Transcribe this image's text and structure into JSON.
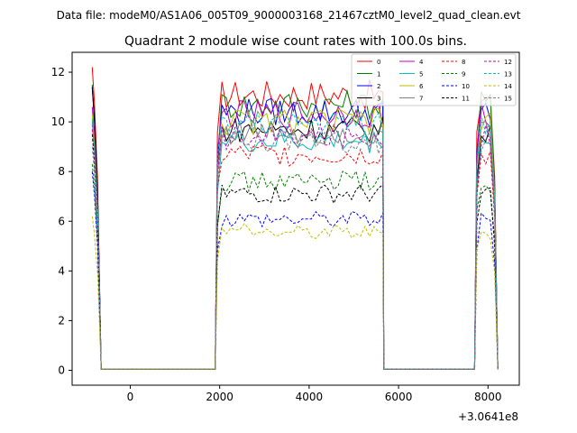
{
  "suptitle": "Data file: modeM0/AS1A06_005T09_9000003168_21467cztM0_level2_quad_clean.evt",
  "chart_data": {
    "type": "line",
    "title": "Quadrant 2 module wise count rates with 100.0s bins.",
    "xlabel": "",
    "ylabel": "",
    "x_offset_label": "+3.0641e8",
    "xlim": [
      -1300,
      8700
    ],
    "ylim": [
      -0.6,
      12.8
    ],
    "xticks": [
      0,
      2000,
      4000,
      6000,
      8000
    ],
    "yticks": [
      0,
      2,
      4,
      6,
      8,
      10,
      12
    ],
    "grid": false,
    "legend_position": "top-right",
    "x_segments": [
      {
        "start": -850,
        "end": -650,
        "state": "on"
      },
      {
        "start": -650,
        "end": 1900,
        "state": "off"
      },
      {
        "start": 1950,
        "end": 5650,
        "state": "on"
      },
      {
        "start": 5700,
        "end": 7700,
        "state": "off"
      },
      {
        "start": 7750,
        "end": 8200,
        "state": "on"
      }
    ],
    "series": [
      {
        "name": "0",
        "color": "#ff0000",
        "dash": "solid",
        "level": 11.1,
        "start": 12.2
      },
      {
        "name": "1",
        "color": "#008000",
        "dash": "solid",
        "level": 10.7,
        "start": 11.5
      },
      {
        "name": "2",
        "color": "#0000ff",
        "dash": "solid",
        "level": 10.4,
        "start": 11.4
      },
      {
        "name": "3",
        "color": "#000000",
        "dash": "solid",
        "level": 9.7,
        "start": 11.4
      },
      {
        "name": "4",
        "color": "#bf00bf",
        "dash": "solid",
        "level": 10.3,
        "start": 10.6
      },
      {
        "name": "5",
        "color": "#00bfbf",
        "dash": "solid",
        "level": 9.2,
        "start": 10.2
      },
      {
        "name": "6",
        "color": "#bfbf00",
        "dash": "solid",
        "level": 10.0,
        "start": 10.3
      },
      {
        "name": "7",
        "color": "#808080",
        "dash": "solid",
        "level": 9.6,
        "start": 10.0
      },
      {
        "name": "8",
        "color": "#ff0000",
        "dash": "dashed",
        "level": 8.7,
        "start": 9.7
      },
      {
        "name": "9",
        "color": "#008000",
        "dash": "dashed",
        "level": 7.6,
        "start": 8.3
      },
      {
        "name": "10",
        "color": "#0000ff",
        "dash": "dashed",
        "level": 6.1,
        "start": 8.0
      },
      {
        "name": "11",
        "color": "#000000",
        "dash": "dashed",
        "level": 7.1,
        "start": 9.5
      },
      {
        "name": "12",
        "color": "#bf00bf",
        "dash": "dashed",
        "level": 9.4,
        "start": 9.9
      },
      {
        "name": "13",
        "color": "#00bfbf",
        "dash": "dashed",
        "level": 9.9,
        "start": 10.1
      },
      {
        "name": "14",
        "color": "#bfbf00",
        "dash": "dashed",
        "level": 5.6,
        "start": 6.2
      },
      {
        "name": "15",
        "color": "#808080",
        "dash": "dashed",
        "level": 9.2,
        "start": 9.0
      }
    ]
  }
}
